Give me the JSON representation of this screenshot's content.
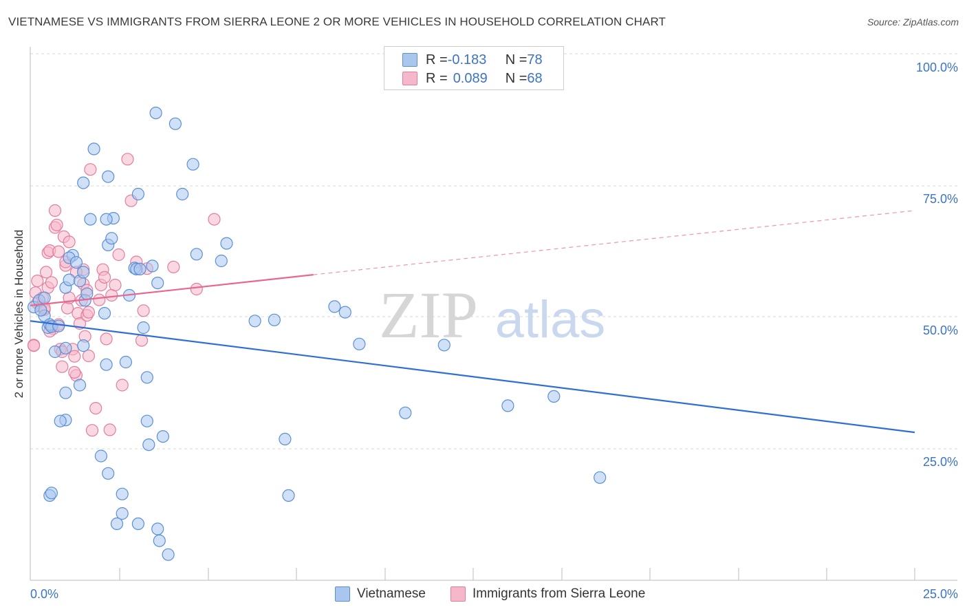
{
  "header": {
    "title": "VIETNAMESE VS IMMIGRANTS FROM SIERRA LEONE 2 OR MORE VEHICLES IN HOUSEHOLD CORRELATION CHART",
    "source": "Source: ZipAtlas.com"
  },
  "legend_top": {
    "rows": [
      {
        "r_label": "R = ",
        "r_value": "-0.183",
        "n_label": "N = ",
        "n_value": "78"
      },
      {
        "r_label": "R = ",
        "r_value": "0.089",
        "n_label": "N = ",
        "n_value": "68"
      }
    ]
  },
  "watermark": {
    "zip": "ZIP",
    "atlas": "atlas"
  },
  "colors": {
    "blue_fill": "#a9c6ef",
    "blue_stroke": "#5a8fd6",
    "blue_line": "#2e6fd4",
    "pink_fill": "#f5b8cb",
    "pink_stroke": "#e47c9e",
    "pink_line": "#e8668f",
    "axis_label": "#3b73c5"
  },
  "chart_data": {
    "type": "scatter",
    "title": "VIETNAMESE VS IMMIGRANTS FROM SIERRA LEONE 2 OR MORE VEHICLES IN HOUSEHOLD CORRELATION CHART",
    "xlabel": "",
    "ylabel": "2 or more Vehicles in Household",
    "xlim": [
      0,
      25
    ],
    "ylim": [
      0,
      100
    ],
    "x_tick_labels": [
      "0.0%",
      "25.0%"
    ],
    "y_tick_labels": [
      "100.0%",
      "75.0%",
      "50.0%",
      "25.0%"
    ],
    "y_ticks": [
      100,
      75,
      50,
      25
    ],
    "grid": true,
    "legend": [
      "Vietnamese",
      "Immigrants from Sierra Leone"
    ],
    "series": [
      {
        "name": "Vietnamese",
        "trend": {
          "x0": 0,
          "y0": 50.5,
          "x1": 25,
          "y1": 28.8,
          "dashed_to": null
        },
        "points": [
          [
            0.1,
            53.2
          ],
          [
            0.25,
            54.5
          ],
          [
            0.4,
            51.5
          ],
          [
            0.5,
            49.2
          ],
          [
            0.55,
            49.8
          ],
          [
            0.6,
            49.4
          ],
          [
            0.8,
            49.5
          ],
          [
            0.7,
            44.5
          ],
          [
            0.55,
            16.5
          ],
          [
            0.6,
            17.0
          ],
          [
            1.0,
            57.0
          ],
          [
            1.2,
            63.3
          ],
          [
            1.1,
            62.8
          ],
          [
            1.1,
            58.5
          ],
          [
            1.0,
            45.2
          ],
          [
            1.0,
            36.5
          ],
          [
            1.0,
            31.2
          ],
          [
            0.85,
            31.0
          ],
          [
            1.3,
            61.9
          ],
          [
            1.4,
            58.3
          ],
          [
            1.5,
            60.0
          ],
          [
            1.55,
            54.5
          ],
          [
            1.5,
            45.7
          ],
          [
            1.4,
            38.0
          ],
          [
            1.5,
            77.4
          ],
          [
            1.8,
            84.0
          ],
          [
            1.7,
            70.3
          ],
          [
            2.2,
            78.6
          ],
          [
            2.35,
            70.5
          ],
          [
            2.15,
            70.3
          ],
          [
            2.2,
            65.3
          ],
          [
            2.3,
            66.6
          ],
          [
            2.1,
            52.0
          ],
          [
            2.15,
            42.0
          ],
          [
            2.0,
            24.2
          ],
          [
            2.2,
            20.8
          ],
          [
            2.45,
            11.0
          ],
          [
            2.6,
            13.0
          ],
          [
            2.6,
            16.8
          ],
          [
            2.7,
            42.5
          ],
          [
            2.8,
            55.5
          ],
          [
            2.95,
            60.8
          ],
          [
            3.0,
            60.6
          ],
          [
            3.05,
            11.0
          ],
          [
            3.05,
            75.2
          ],
          [
            3.1,
            60.6
          ],
          [
            3.2,
            49.2
          ],
          [
            3.3,
            39.5
          ],
          [
            3.3,
            31.0
          ],
          [
            3.35,
            26.4
          ],
          [
            3.45,
            61.2
          ],
          [
            3.55,
            91.0
          ],
          [
            3.6,
            57.9
          ],
          [
            3.6,
            10.0
          ],
          [
            3.65,
            7.7
          ],
          [
            3.75,
            28.0
          ],
          [
            3.9,
            5.0
          ],
          [
            4.1,
            88.9
          ],
          [
            4.3,
            75.2
          ],
          [
            4.6,
            81.0
          ],
          [
            4.7,
            63.5
          ],
          [
            5.4,
            62.2
          ],
          [
            5.55,
            65.6
          ],
          [
            6.35,
            50.5
          ],
          [
            6.9,
            50.7
          ],
          [
            7.2,
            27.5
          ],
          [
            7.3,
            16.5
          ],
          [
            8.6,
            53.3
          ],
          [
            8.9,
            52.2
          ],
          [
            9.3,
            46.0
          ],
          [
            10.6,
            32.6
          ],
          [
            11.7,
            45.8
          ],
          [
            13.5,
            34.0
          ],
          [
            14.8,
            35.8
          ],
          [
            16.1,
            20.0
          ],
          [
            0.3,
            52.6
          ],
          [
            0.4,
            55.0
          ],
          [
            1.6,
            55.8
          ]
        ]
      },
      {
        "name": "Immigrants from Sierra Leone",
        "trend": {
          "x0": 0,
          "y0": 53.5,
          "x1": 8.0,
          "y1": 59.5,
          "dashed_to": {
            "x": 25,
            "y": 72.0
          }
        },
        "points": [
          [
            0.1,
            45.8
          ],
          [
            0.1,
            45.7
          ],
          [
            0.15,
            56.0
          ],
          [
            0.2,
            58.3
          ],
          [
            0.2,
            54.0
          ],
          [
            0.3,
            53.3
          ],
          [
            0.35,
            55.0
          ],
          [
            0.4,
            52.7
          ],
          [
            0.45,
            60.0
          ],
          [
            0.5,
            57.0
          ],
          [
            0.5,
            63.8
          ],
          [
            0.55,
            64.2
          ],
          [
            0.6,
            49.5
          ],
          [
            0.6,
            58.0
          ],
          [
            0.65,
            49.0
          ],
          [
            0.7,
            68.7
          ],
          [
            0.7,
            72.0
          ],
          [
            0.75,
            69.2
          ],
          [
            0.8,
            64.0
          ],
          [
            0.8,
            49.8
          ],
          [
            0.85,
            45.0
          ],
          [
            0.9,
            41.6
          ],
          [
            0.95,
            66.9
          ],
          [
            1.0,
            61.3
          ],
          [
            1.0,
            62.0
          ],
          [
            1.05,
            53.0
          ],
          [
            1.1,
            55.0
          ],
          [
            1.1,
            65.9
          ],
          [
            1.2,
            45.0
          ],
          [
            1.25,
            43.6
          ],
          [
            1.3,
            39.9
          ],
          [
            1.35,
            52.0
          ],
          [
            1.4,
            50.0
          ],
          [
            1.45,
            54.5
          ],
          [
            1.5,
            57.7
          ],
          [
            1.5,
            60.5
          ],
          [
            1.55,
            47.5
          ],
          [
            1.6,
            56.5
          ],
          [
            1.65,
            43.7
          ],
          [
            1.7,
            80.0
          ],
          [
            1.75,
            29.2
          ],
          [
            1.85,
            33.5
          ],
          [
            1.95,
            54.6
          ],
          [
            2.0,
            57.5
          ],
          [
            2.05,
            60.5
          ],
          [
            2.15,
            47.0
          ],
          [
            2.25,
            29.3
          ],
          [
            2.3,
            55.5
          ],
          [
            2.4,
            57.5
          ],
          [
            2.5,
            63.4
          ],
          [
            2.6,
            38.0
          ],
          [
            2.75,
            82.0
          ],
          [
            2.85,
            73.9
          ],
          [
            3.0,
            62.0
          ],
          [
            3.15,
            46.7
          ],
          [
            3.2,
            52.5
          ],
          [
            3.3,
            60.7
          ],
          [
            4.05,
            61.0
          ],
          [
            4.7,
            56.7
          ],
          [
            5.2,
            70.3
          ],
          [
            1.6,
            51.6
          ],
          [
            1.65,
            52.2
          ],
          [
            0.4,
            53.0
          ],
          [
            0.9,
            44.5
          ],
          [
            1.3,
            60.0
          ],
          [
            2.1,
            59.0
          ],
          [
            0.55,
            48.5
          ],
          [
            1.25,
            40.5
          ]
        ]
      }
    ]
  },
  "bottom_legend": {
    "items": [
      {
        "label": "Vietnamese"
      },
      {
        "label": "Immigrants from Sierra Leone"
      }
    ]
  }
}
